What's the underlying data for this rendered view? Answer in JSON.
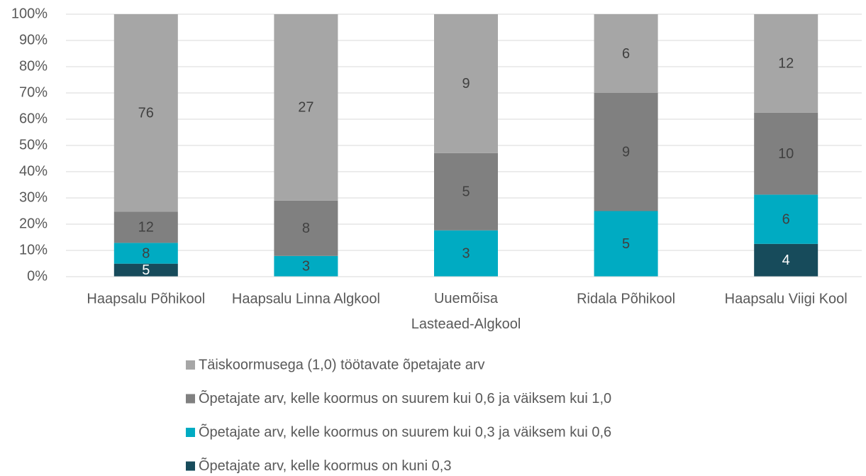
{
  "chart_data": {
    "type": "bar",
    "stacking": "percent",
    "categories": [
      "Haapsalu Põhikool",
      "Haapsalu Linna Algkool",
      "Uuemõisa Lasteaed-Algkool",
      "Ridala Põhikool",
      "Haapsalu Viigi Kool"
    ],
    "series": [
      {
        "name": "Õpetajate arv, kelle koormus on kuni 0,3",
        "color": "#174b5b",
        "values": [
          5,
          null,
          null,
          null,
          4
        ]
      },
      {
        "name": "Õpetajate arv, kelle koormus on suurem kui 0,3 ja väiksem kui 0,6",
        "color": "#00abc2",
        "values": [
          8,
          3,
          3,
          5,
          6
        ]
      },
      {
        "name": "Õpetajate arv, kelle koormus on suurem kui 0,6 ja väiksem kui 1,0",
        "color": "#808080",
        "values": [
          12,
          8,
          5,
          9,
          10
        ]
      },
      {
        "name": "Täiskoormusega (1,0) töötavate õpetajate arv",
        "color": "#a6a6a6",
        "values": [
          76,
          27,
          9,
          6,
          12
        ]
      }
    ],
    "ylim": [
      0,
      100
    ],
    "yticks": [
      {
        "value": 0,
        "label": "0%"
      },
      {
        "value": 10,
        "label": "10%"
      },
      {
        "value": 20,
        "label": "20%"
      },
      {
        "value": 30,
        "label": "30%"
      },
      {
        "value": 40,
        "label": "40%"
      },
      {
        "value": 50,
        "label": "50%"
      },
      {
        "value": 60,
        "label": "60%"
      },
      {
        "value": 70,
        "label": "70%"
      },
      {
        "value": 80,
        "label": "80%"
      },
      {
        "value": 90,
        "label": "90%"
      },
      {
        "value": 100,
        "label": "100%"
      }
    ],
    "grid": true,
    "legend": "bottom"
  }
}
